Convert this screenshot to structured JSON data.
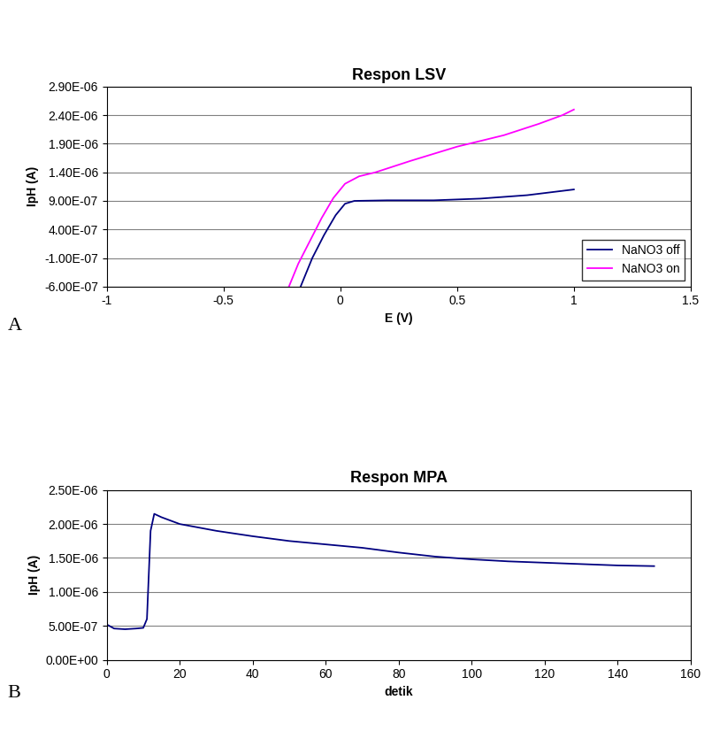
{
  "chart_data": [
    {
      "type": "line",
      "title": "Respon LSV",
      "x_label": "E (V)",
      "y_label": "IpH (A)",
      "annotations": [
        "A"
      ],
      "xlim": [
        -1,
        1.5
      ],
      "xticks": [
        -1,
        -0.5,
        0,
        0.5,
        1,
        1.5
      ],
      "ylim": [
        -6e-07,
        2.9e-06
      ],
      "yticks": [
        {
          "value": -6e-07,
          "label": "-6.00E-07"
        },
        {
          "value": -1e-07,
          "label": "-1.00E-07"
        },
        {
          "value": 4e-07,
          "label": "4.00E-07"
        },
        {
          "value": 9e-07,
          "label": "9.00E-07"
        },
        {
          "value": 1.4e-06,
          "label": "1.40E-06"
        },
        {
          "value": 1.9e-06,
          "label": "1.90E-06"
        },
        {
          "value": 2.4e-06,
          "label": "2.40E-06"
        },
        {
          "value": 2.9e-06,
          "label": "2.90E-06"
        }
      ],
      "grid": true,
      "legend": "lower right",
      "series": [
        {
          "name": "NaNO3 off",
          "color": "#000080",
          "x": [
            -0.17,
            -0.12,
            -0.07,
            -0.02,
            0.02,
            0.06,
            0.2,
            0.4,
            0.6,
            0.8,
            1.0
          ],
          "values": [
            -6e-07,
            -1e-07,
            3e-07,
            6.5e-07,
            8.5e-07,
            9e-07,
            9.1e-07,
            9.1e-07,
            9.4e-07,
            1e-06,
            1.1e-06
          ]
        },
        {
          "name": "NaNO3 on",
          "color": "#ff00ff",
          "x": [
            -0.22,
            -0.18,
            -0.13,
            -0.08,
            -0.03,
            0.02,
            0.08,
            0.15,
            0.3,
            0.5,
            0.7,
            0.85,
            0.95,
            1.0
          ],
          "values": [
            -6e-07,
            -2e-07,
            2e-07,
            6e-07,
            9.5e-07,
            1.2e-06,
            1.33e-06,
            1.4e-06,
            1.6e-06,
            1.85e-06,
            2.05e-06,
            2.25e-06,
            2.4e-06,
            2.5e-06
          ]
        }
      ]
    },
    {
      "type": "line",
      "title": "Respon MPA",
      "x_label": "detik",
      "y_label": "IpH (A)",
      "annotations": [
        "B"
      ],
      "xlim": [
        0,
        160
      ],
      "xticks": [
        0,
        20,
        40,
        60,
        80,
        100,
        120,
        140,
        160
      ],
      "ylim": [
        0,
        2.5e-06
      ],
      "yticks": [
        {
          "value": 0,
          "label": "0.00E+00"
        },
        {
          "value": 5e-07,
          "label": "5.00E-07"
        },
        {
          "value": 1e-06,
          "label": "1.00E-06"
        },
        {
          "value": 1.5e-06,
          "label": "1.50E-06"
        },
        {
          "value": 2e-06,
          "label": "2.00E-06"
        },
        {
          "value": 2.5e-06,
          "label": "2.50E-06"
        }
      ],
      "grid": true,
      "series": [
        {
          "color": "#000080",
          "x": [
            0,
            2,
            5,
            8,
            10,
            11,
            12,
            13,
            15,
            20,
            30,
            40,
            50,
            60,
            70,
            80,
            90,
            100,
            110,
            120,
            130,
            140,
            150
          ],
          "values": [
            5.2e-07,
            4.6e-07,
            4.5e-07,
            4.6e-07,
            4.7e-07,
            6e-07,
            1.9e-06,
            2.15e-06,
            2.1e-06,
            2e-06,
            1.9e-06,
            1.82e-06,
            1.75e-06,
            1.7e-06,
            1.65e-06,
            1.58e-06,
            1.52e-06,
            1.48e-06,
            1.45e-06,
            1.43e-06,
            1.41e-06,
            1.39e-06,
            1.38e-06
          ]
        }
      ]
    }
  ]
}
